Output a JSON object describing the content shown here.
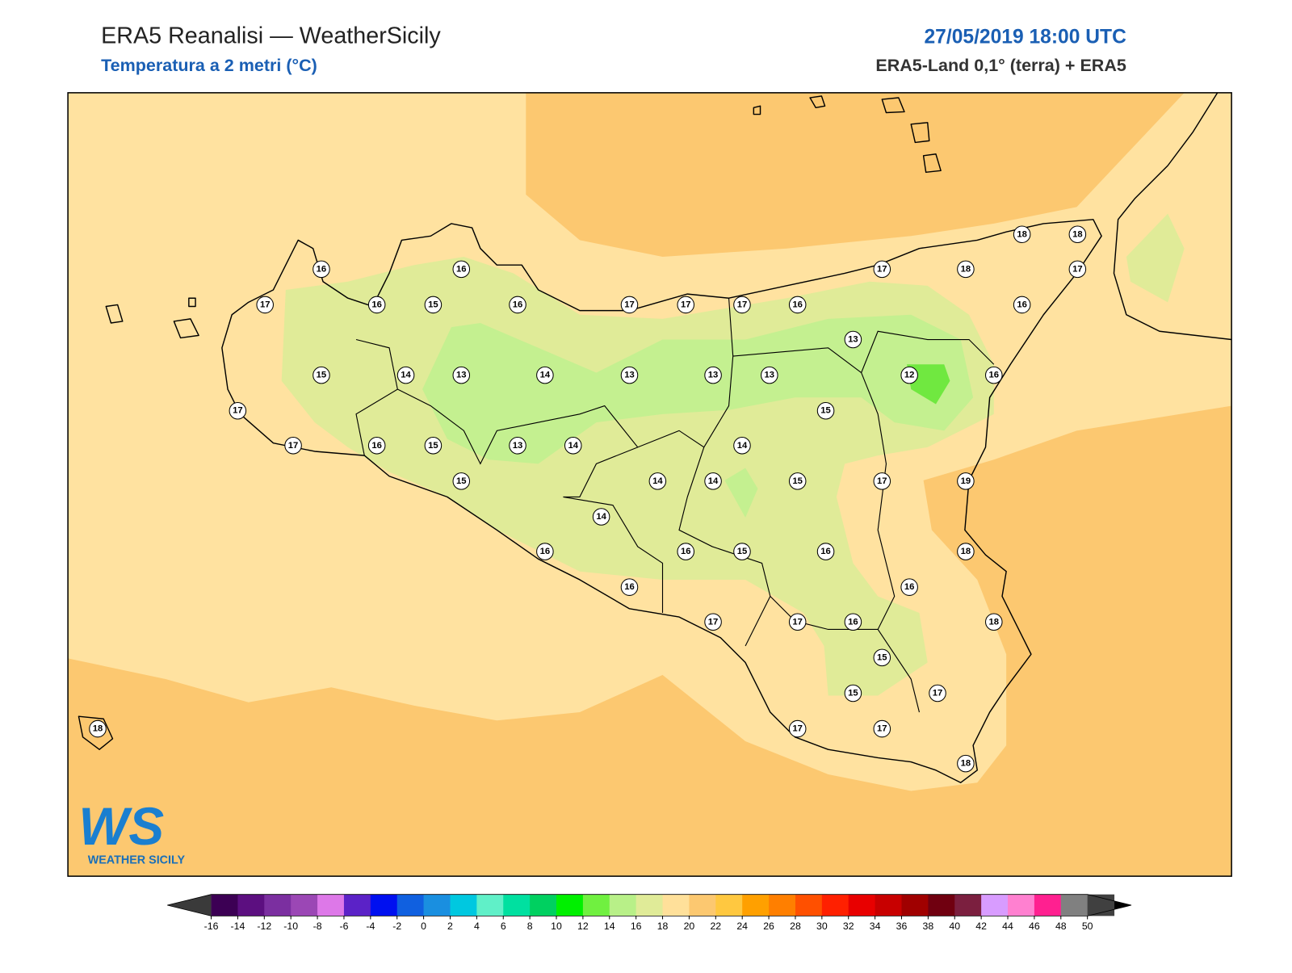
{
  "header": {
    "title": "ERA5 Reanalisi — WeatherSicily",
    "subtitle": "Temperatura a 2 metri (°C)",
    "datetime": "27/05/2019 18:00 UTC",
    "source": "ERA5-Land 0,1° (terra) + ERA5"
  },
  "stations": [
    16,
    16,
    17,
    16,
    15,
    16,
    17,
    17,
    17,
    16,
    17,
    18,
    18,
    18,
    17,
    16,
    13,
    15,
    14,
    13,
    14,
    13,
    13,
    13,
    12,
    16,
    17,
    15,
    17,
    16,
    15,
    13,
    14,
    14,
    15,
    14,
    14,
    15,
    17,
    19,
    14,
    16,
    16,
    15,
    16,
    18,
    16,
    16,
    17,
    17,
    16,
    18,
    15,
    15,
    17,
    18,
    17,
    17,
    18
  ],
  "colorbar": {
    "ticks": [
      -16,
      -14,
      -12,
      -10,
      -8,
      -6,
      -4,
      -2,
      0,
      2,
      4,
      6,
      8,
      10,
      12,
      14,
      16,
      18,
      20,
      22,
      24,
      26,
      28,
      30,
      32,
      34,
      36,
      38,
      40,
      42,
      44,
      46,
      48,
      50
    ],
    "colors": [
      "#3c0054",
      "#5c0f80",
      "#7b2fa0",
      "#9b47b5",
      "#dd78e8",
      "#5b22c7",
      "#0010f0",
      "#1060e0",
      "#1a8fe0",
      "#00c8e0",
      "#60f0c8",
      "#00e0a0",
      "#00d060",
      "#00f000",
      "#70f040",
      "#b8f088",
      "#e0eb98",
      "#ffe09a",
      "#fcc870",
      "#ffc840",
      "#ffa000",
      "#ff7f00",
      "#ff5000",
      "#ff2000",
      "#e80000",
      "#c80000",
      "#a00000",
      "#700010",
      "#7b1f3f",
      "#d89cff",
      "#ff80d0",
      "#ff2090",
      "#808080",
      "#404040"
    ],
    "under_color": "#3a3a3a",
    "over_color": "#000000"
  },
  "logo": {
    "mark": "WS",
    "text": "WEATHER SICILY"
  }
}
